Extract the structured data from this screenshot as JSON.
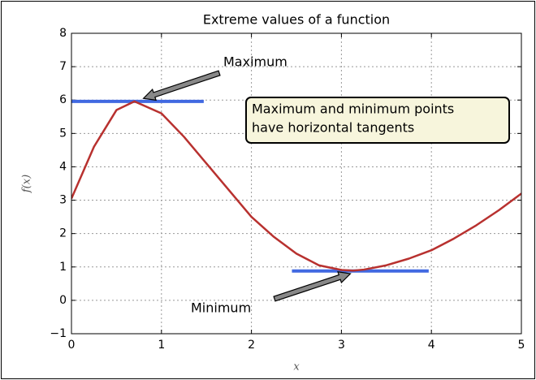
{
  "chart_data": {
    "type": "line",
    "title": "Extreme values of a function",
    "xlabel": "x",
    "ylabel": "f(x)",
    "x": [
      0,
      0.25,
      0.5,
      0.7,
      1.0,
      1.25,
      1.5,
      1.75,
      2.0,
      2.25,
      2.5,
      2.75,
      3.0,
      3.13,
      3.25,
      3.5,
      3.75,
      4.0,
      4.25,
      4.5,
      4.75,
      5.0
    ],
    "series": [
      {
        "color": "#b8312f",
        "values": [
          3.05,
          4.6,
          5.7,
          5.96,
          5.6,
          4.9,
          4.1,
          3.3,
          2.5,
          1.9,
          1.4,
          1.05,
          0.91,
          0.89,
          0.92,
          1.05,
          1.25,
          1.5,
          1.85,
          2.25,
          2.7,
          3.2
        ]
      }
    ],
    "tangents": [
      {
        "y": 5.96,
        "xmin": 0,
        "xmax": 1.47,
        "color": "#4169e1"
      },
      {
        "y": 0.88,
        "xmin": 2.45,
        "xmax": 3.97,
        "color": "#4169e1"
      }
    ],
    "annotations": [
      {
        "text": "Maximum",
        "xy": [
          0.8,
          6.05
        ]
      },
      {
        "text": "Minimum",
        "xy": [
          3.1,
          0.8
        ]
      }
    ],
    "note": [
      "Maximum and minimum points",
      "have horizontal tangents"
    ],
    "xlim": [
      0,
      5
    ],
    "ylim": [
      -1,
      8
    ],
    "xticks": [
      0,
      1,
      2,
      3,
      4,
      5
    ],
    "yticks": [
      {
        "value": -1,
        "label": "−1"
      },
      0,
      1,
      2,
      3,
      4,
      5,
      6,
      7,
      8
    ],
    "grid": true
  }
}
